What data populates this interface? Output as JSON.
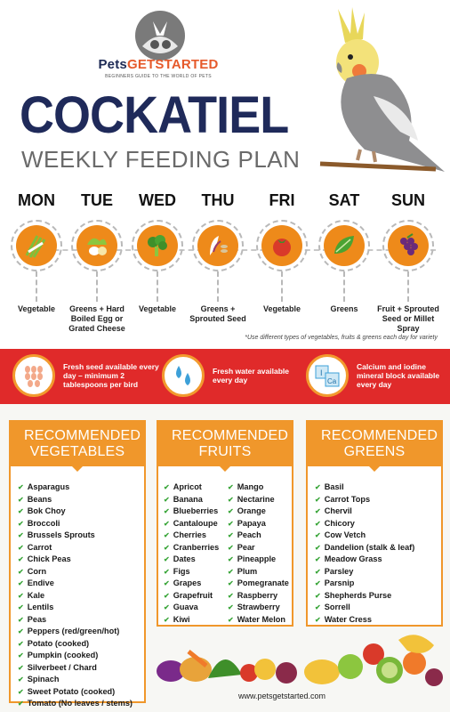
{
  "brand": {
    "pets": "Pets",
    "get_started": "GETSTARTED",
    "tagline": "BEGINNERS GUIDE TO THE WORLD OF PETS"
  },
  "title": "COCKATIEL",
  "subtitle": "WEEKLY FEEDING PLAN",
  "days": [
    {
      "name": "MON",
      "food": "Vegetable",
      "icon": "asparagus-icon"
    },
    {
      "name": "TUE",
      "food": "Greens + Hard Boiled Egg or Grated Cheese",
      "icon": "egg-greens-icon"
    },
    {
      "name": "WED",
      "food": "Vegetable",
      "icon": "broccoli-icon"
    },
    {
      "name": "THU",
      "food": "Greens + Sprouted Seed",
      "icon": "sprouted-seed-icon"
    },
    {
      "name": "FRI",
      "food": "Vegetable",
      "icon": "tomato-icon"
    },
    {
      "name": "SAT",
      "food": "Greens",
      "icon": "leaf-icon"
    },
    {
      "name": "SUN",
      "food": "Fruit + Sprouted Seed or Millet Spray",
      "icon": "grapes-icon"
    }
  ],
  "note": "*Use different types of vegetables, fruits & greens each day for variety",
  "band": [
    {
      "text": "Fresh seed available every day – minimum 2 tablespoons per bird",
      "icon": "seed-icon"
    },
    {
      "text": "Fresh water available every day",
      "icon": "water-drops-icon"
    },
    {
      "text": "Calcium and iodine mineral block available every day",
      "icon": "mineral-block-icon",
      "labels": [
        "I",
        "Ca"
      ]
    }
  ],
  "colors": {
    "navy": "#1f2a5a",
    "orange": "#f0972b",
    "red": "#e02a2a",
    "check": "#3aa63a"
  },
  "vegetables": {
    "heading": "RECOMMENDED VEGETABLES",
    "items": [
      "Asparagus",
      "Beans",
      "Bok Choy",
      "Broccoli",
      "Brussels Sprouts",
      "Carrot",
      "Chick Peas",
      "Corn",
      "Endive",
      "Kale",
      "Lentils",
      "Peas",
      "Peppers (red/green/hot)",
      "Potato (cooked)",
      "Pumpkin (cooked)",
      "Silverbeet / Chard",
      "Spinach",
      "Sweet Potato (cooked)",
      "Tomato (No leaves / stems)"
    ]
  },
  "fruits": {
    "heading": "RECOMMENDED FRUITS",
    "col1": [
      "Apricot",
      "Banana",
      "Blueberries",
      "Cantaloupe",
      "Cherries",
      "Cranberries",
      "Dates",
      "Figs",
      "Grapes",
      "Grapefruit",
      "Guava",
      "Kiwi"
    ],
    "col2": [
      "Mango",
      "Nectarine",
      "Orange",
      "Papaya",
      "Peach",
      "Pear",
      "Pineapple",
      "Plum",
      "Pomegranate",
      "Raspberry",
      "Strawberry",
      "Water Melon"
    ]
  },
  "greens": {
    "heading": "RECOMMENDED GREENS",
    "items": [
      "Basil",
      "Carrot Tops",
      "Chervil",
      "Chicory",
      "Cow Vetch",
      "Dandelion (stalk & leaf)",
      "Meadow Grass",
      "Parsley",
      "Parsnip",
      "Shepherds Purse",
      "Sorrell",
      "Water Cress"
    ]
  },
  "footer_url": "www.petsgetstarted.com"
}
